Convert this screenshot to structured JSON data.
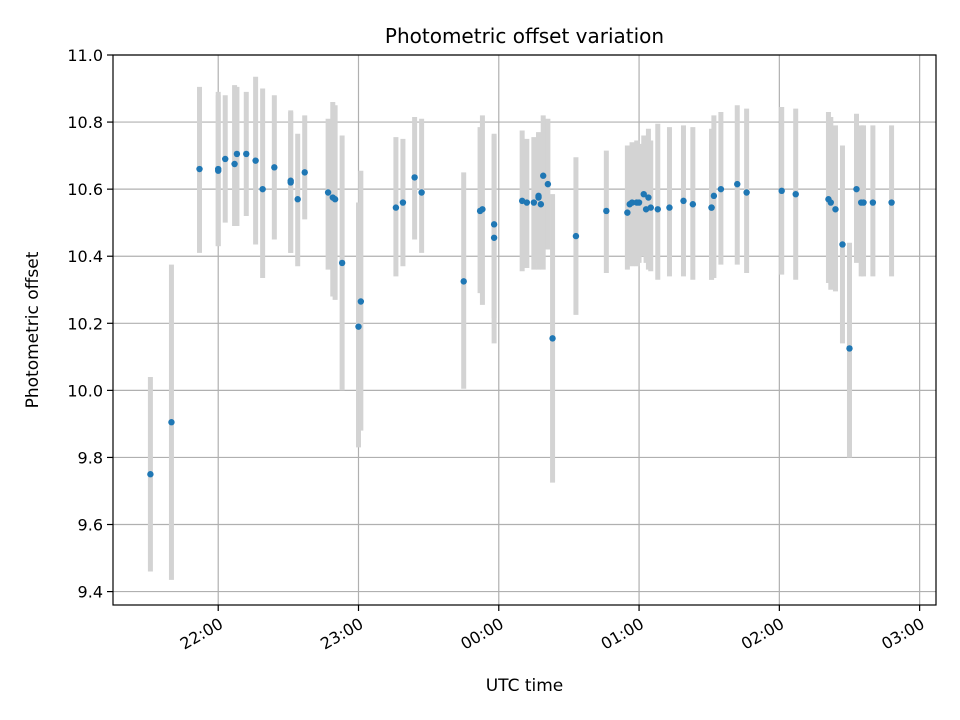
{
  "chart_data": {
    "type": "scatter",
    "title": "Photometric offset variation",
    "xlabel": "UTC time",
    "ylabel": "Photometric offset",
    "xlim": [
      "21:15",
      "03:07"
    ],
    "ylim": [
      9.36,
      11.0
    ],
    "xticks": [
      "22:00",
      "23:00",
      "00:00",
      "01:00",
      "02:00",
      "03:00"
    ],
    "yticks": [
      "9.4",
      "9.6",
      "9.8",
      "10.0",
      "10.2",
      "10.4",
      "10.6",
      "10.8",
      "11.0"
    ],
    "grid": true,
    "colors": {
      "point": "#1f77b4",
      "errorbar": "#d3d3d3",
      "grid": "#b0b0b0"
    },
    "series": [
      {
        "x": [
          "21:31",
          "21:40",
          "21:52",
          "22:00",
          "22:00",
          "22:03",
          "22:07",
          "22:08",
          "22:12",
          "22:16",
          "22:19",
          "22:24",
          "22:31",
          "22:31",
          "22:34",
          "22:37",
          "22:47",
          "22:49",
          "22:50",
          "22:53",
          "23:00",
          "23:01",
          "23:16",
          "23:19",
          "23:24",
          "23:27",
          "23:45",
          "23:52",
          "23:53",
          "23:58",
          "23:58",
          "24:10",
          "24:12",
          "24:15",
          "24:17",
          "24:17",
          "24:18",
          "24:19",
          "24:21",
          "24:23",
          "24:33",
          "24:46",
          "24:55",
          "24:56",
          "24:57",
          "24:59",
          "25:00",
          "25:02",
          "25:03",
          "25:04",
          "25:05",
          "25:08",
          "25:13",
          "25:19",
          "25:23",
          "25:31",
          "25:31",
          "25:32",
          "25:35",
          "25:42",
          "25:46",
          "26:01",
          "26:07",
          "26:21",
          "26:22",
          "26:24",
          "26:27",
          "26:30",
          "26:33",
          "26:35",
          "26:36",
          "26:40",
          "26:48"
        ],
        "y": [
          9.75,
          9.905,
          10.66,
          10.66,
          10.655,
          10.69,
          10.675,
          10.705,
          10.705,
          10.685,
          10.6,
          10.665,
          10.62,
          10.625,
          10.57,
          10.65,
          10.59,
          10.575,
          10.57,
          10.38,
          10.19,
          10.265,
          10.545,
          10.56,
          10.635,
          10.59,
          10.325,
          10.535,
          10.54,
          10.495,
          10.455,
          10.565,
          10.56,
          10.56,
          10.58,
          10.575,
          10.555,
          10.64,
          10.615,
          10.155,
          10.46,
          10.535,
          10.53,
          10.555,
          10.56,
          10.56,
          10.56,
          10.585,
          10.54,
          10.575,
          10.545,
          10.54,
          10.545,
          10.565,
          10.555,
          10.545,
          10.545,
          10.58,
          10.6,
          10.615,
          10.59,
          10.595,
          10.585,
          10.57,
          10.56,
          10.54,
          10.435,
          10.125,
          10.6,
          10.56,
          10.56,
          10.56,
          10.56
        ],
        "yerr_low": [
          9.46,
          9.435,
          10.41,
          10.43,
          10.43,
          10.5,
          10.49,
          10.49,
          10.52,
          10.435,
          10.335,
          10.45,
          10.41,
          10.41,
          10.37,
          10.51,
          10.36,
          10.28,
          10.27,
          10.0,
          9.83,
          9.88,
          10.34,
          10.37,
          10.45,
          10.41,
          10.005,
          10.29,
          10.255,
          10.215,
          10.14,
          10.355,
          10.365,
          10.36,
          10.38,
          10.36,
          10.37,
          10.36,
          10.42,
          9.725,
          10.225,
          10.35,
          10.36,
          10.38,
          10.37,
          10.37,
          10.38,
          10.4,
          10.38,
          10.36,
          10.355,
          10.33,
          10.34,
          10.34,
          10.33,
          10.33,
          10.33,
          10.335,
          10.375,
          10.375,
          10.35,
          10.345,
          10.33,
          10.32,
          10.3,
          10.295,
          10.14,
          9.8,
          10.38,
          10.34,
          10.34,
          10.34,
          10.34
        ],
        "yerr_high": [
          10.04,
          10.375,
          10.905,
          10.89,
          10.88,
          10.88,
          10.91,
          10.905,
          10.89,
          10.935,
          10.9,
          10.88,
          10.835,
          10.83,
          10.765,
          10.82,
          10.81,
          10.86,
          10.85,
          10.76,
          10.56,
          10.655,
          10.755,
          10.75,
          10.815,
          10.81,
          10.65,
          10.785,
          10.82,
          10.765,
          10.76,
          10.775,
          10.75,
          10.755,
          10.77,
          10.765,
          10.75,
          10.82,
          10.81,
          10.585,
          10.695,
          10.715,
          10.73,
          10.73,
          10.74,
          10.745,
          10.735,
          10.76,
          10.7,
          10.78,
          10.745,
          10.795,
          10.785,
          10.79,
          10.785,
          10.735,
          10.78,
          10.82,
          10.83,
          10.85,
          10.84,
          10.845,
          10.84,
          10.83,
          10.815,
          10.79,
          10.73,
          10.44,
          10.825,
          10.79,
          10.79,
          10.79,
          10.79
        ]
      }
    ]
  }
}
